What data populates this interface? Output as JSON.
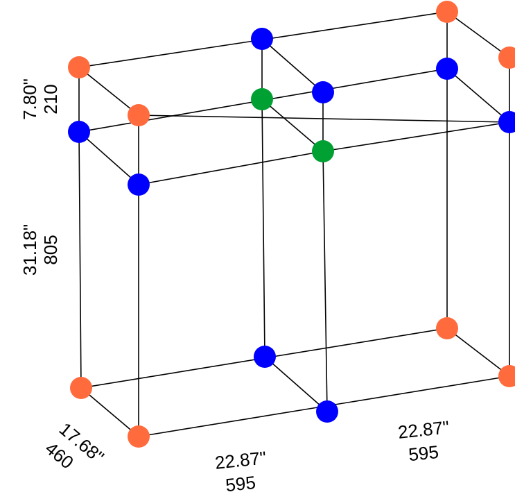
{
  "colors": {
    "corner": "#FF6B3D",
    "joint": "#0000FF",
    "middle": "#00A032",
    "line": "#000000"
  },
  "dimensions": {
    "top_height": {
      "imperial": "7.80\"",
      "metric": "210"
    },
    "body_height": {
      "imperial": "31.18\"",
      "metric": "805"
    },
    "depth": {
      "imperial": "17.68\"",
      "metric": "460"
    },
    "width_front": {
      "imperial": "22.87\"",
      "metric": "595"
    },
    "width_back": {
      "imperial": "22.87\"",
      "metric": "595"
    }
  }
}
